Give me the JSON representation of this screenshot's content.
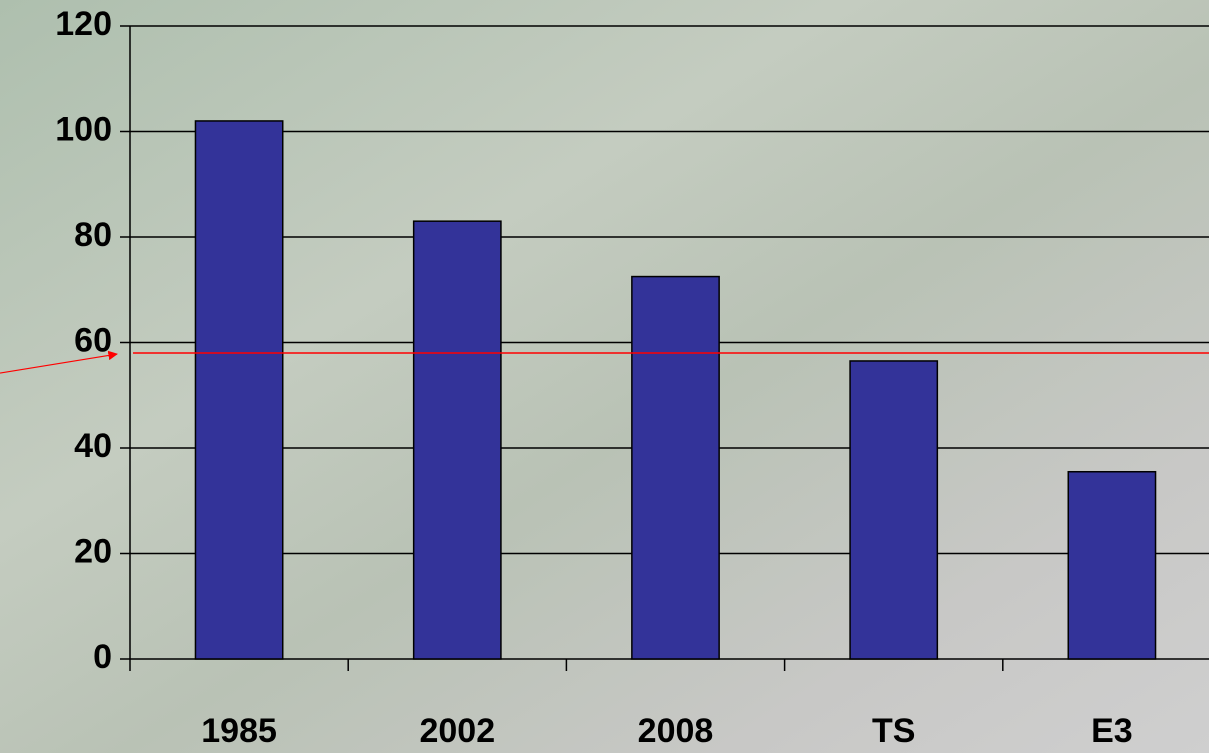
{
  "chart_data": {
    "type": "bar",
    "categories": [
      "1985",
      "2002",
      "2008",
      "TS",
      "E3"
    ],
    "values": [
      102,
      83,
      72.5,
      56.5,
      35.5
    ],
    "color": "#333399",
    "ylim": [
      0,
      120
    ],
    "yticks": [
      0,
      20,
      40,
      60,
      80,
      100,
      120
    ],
    "grid": true,
    "reference_line": {
      "value": 58,
      "color": "#ff0000"
    }
  }
}
